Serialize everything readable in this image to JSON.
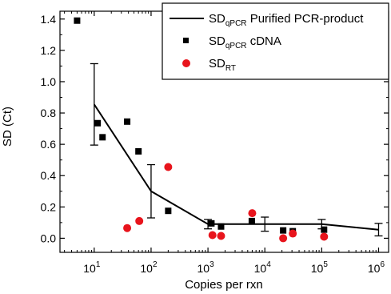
{
  "chart_data": {
    "type": "scatter",
    "title": "",
    "xlabel": "Copies per rxn",
    "ylabel": "SD (Ct)",
    "xscale": "log",
    "xlim": [
      2.5,
      1500000
    ],
    "ylim": [
      -0.09,
      1.45
    ],
    "grid": false,
    "legend_position": "top-right",
    "x_ticks": [
      {
        "value": 10,
        "base": "10",
        "exp": "1"
      },
      {
        "value": 100,
        "base": "10",
        "exp": "2"
      },
      {
        "value": 1000,
        "base": "10",
        "exp": "3"
      },
      {
        "value": 10000,
        "base": "10",
        "exp": "4"
      },
      {
        "value": 100000,
        "base": "10",
        "exp": "5"
      },
      {
        "value": 1000000,
        "base": "10",
        "exp": "6"
      }
    ],
    "y_ticks": [
      {
        "value": 0.0,
        "label": "0.0"
      },
      {
        "value": 0.2,
        "label": "0.2"
      },
      {
        "value": 0.4,
        "label": "0.4"
      },
      {
        "value": 0.6,
        "label": "0.6"
      },
      {
        "value": 0.8,
        "label": "0.8"
      },
      {
        "value": 1.0,
        "label": "1.0"
      },
      {
        "value": 1.2,
        "label": "1.2"
      },
      {
        "value": 1.4,
        "label": "1.4"
      }
    ],
    "series": [
      {
        "name": "SD qPCR Purified PCR-product",
        "legend_main": "SD",
        "legend_sub": "qPCR",
        "legend_rest": " Purified PCR-product",
        "kind": "line",
        "color": "#000000",
        "points": [
          {
            "x": 10,
            "y": 0.855,
            "err": 0.26
          },
          {
            "x": 100,
            "y": 0.3,
            "err": 0.17
          },
          {
            "x": 1000,
            "y": 0.09,
            "err": 0.03
          },
          {
            "x": 10000,
            "y": 0.09,
            "err": 0.045
          },
          {
            "x": 100000,
            "y": 0.09,
            "err": 0.03
          },
          {
            "x": 1000000,
            "y": 0.055,
            "err": 0.04
          }
        ]
      },
      {
        "name": "SD qPCR cDNA",
        "legend_main": "SD",
        "legend_sub": "qPCR",
        "legend_rest": " cDNA",
        "kind": "square",
        "color": "#000000",
        "points": [
          {
            "x": 5,
            "y": 1.39
          },
          {
            "x": 11.5,
            "y": 0.735
          },
          {
            "x": 14,
            "y": 0.645
          },
          {
            "x": 38,
            "y": 0.745
          },
          {
            "x": 60,
            "y": 0.555
          },
          {
            "x": 200,
            "y": 0.175
          },
          {
            "x": 1150,
            "y": 0.095
          },
          {
            "x": 1700,
            "y": 0.075
          },
          {
            "x": 5900,
            "y": 0.11
          },
          {
            "x": 21000,
            "y": 0.05
          },
          {
            "x": 31000,
            "y": 0.045
          },
          {
            "x": 110000,
            "y": 0.055
          }
        ]
      },
      {
        "name": "SD RT",
        "legend_main": "SD",
        "legend_sub": "RT",
        "legend_rest": "",
        "kind": "circle",
        "color": "#e8141c",
        "points": [
          {
            "x": 38,
            "y": 0.065
          },
          {
            "x": 62,
            "y": 0.11
          },
          {
            "x": 200,
            "y": 0.455
          },
          {
            "x": 1200,
            "y": 0.02
          },
          {
            "x": 1700,
            "y": 0.015
          },
          {
            "x": 6000,
            "y": 0.16
          },
          {
            "x": 21000,
            "y": 0.0
          },
          {
            "x": 31000,
            "y": 0.03
          },
          {
            "x": 110000,
            "y": 0.01
          }
        ]
      }
    ]
  }
}
